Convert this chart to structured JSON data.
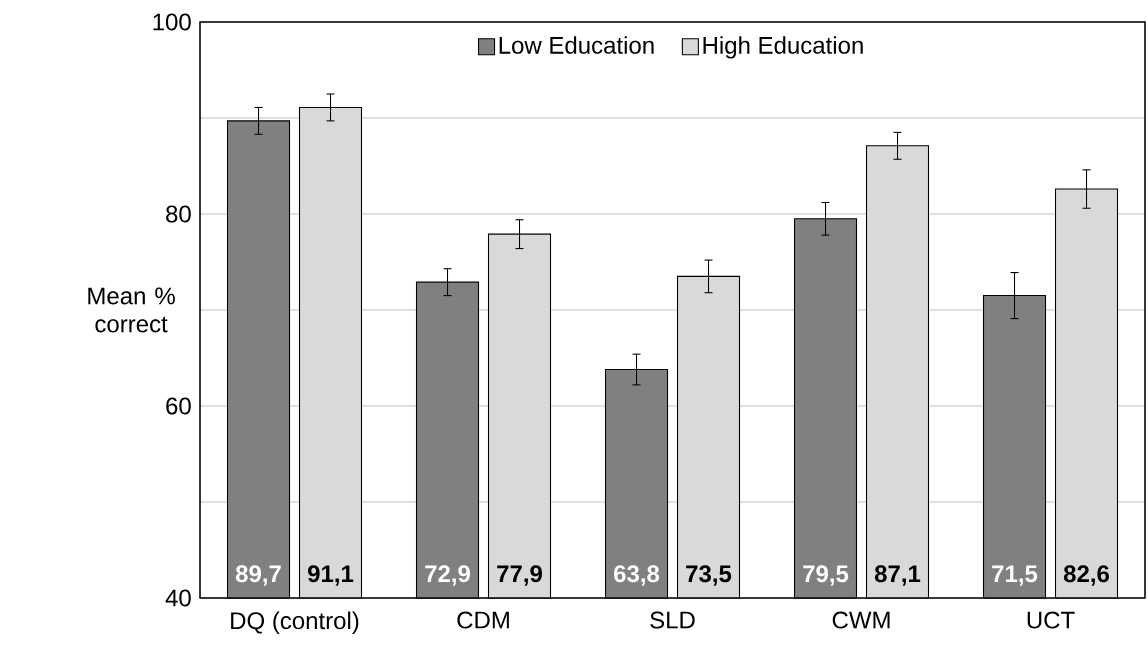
{
  "chart_data": {
    "type": "bar",
    "ylabel": "Mean % correct",
    "categories": [
      "DQ (control)",
      "CDM",
      "SLD",
      "CWM",
      "UCT"
    ],
    "series": [
      {
        "name": "Low Education",
        "color": "#808080",
        "values": [
          89.7,
          72.9,
          63.8,
          79.5,
          71.5
        ],
        "errors": [
          1.4,
          1.4,
          1.6,
          1.7,
          2.4
        ],
        "value_labels": [
          "89,7",
          "72,9",
          "63,8",
          "79,5",
          "71,5"
        ]
      },
      {
        "name": "High Education",
        "color": "#d9d9d9",
        "values": [
          91.1,
          77.9,
          73.5,
          87.1,
          82.6
        ],
        "errors": [
          1.4,
          1.5,
          1.7,
          1.4,
          2.0
        ],
        "value_labels": [
          "91,1",
          "77,9",
          "73,5",
          "87,1",
          "82,6"
        ]
      }
    ],
    "ylim": [
      40,
      100
    ],
    "yticks": [
      40,
      {
        "value": 50,
        "label": null
      },
      60,
      {
        "value": 70,
        "label": null
      },
      80,
      {
        "value": 90,
        "label": null
      },
      100
    ],
    "grid": "y",
    "legend": "top"
  }
}
